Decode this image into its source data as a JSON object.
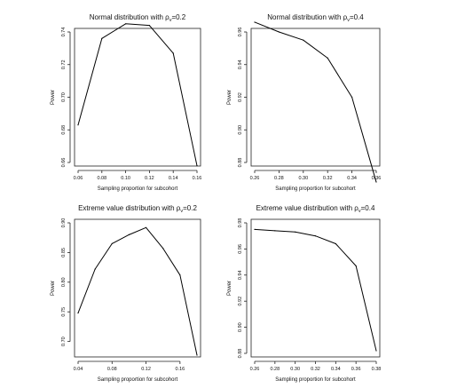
{
  "chart_data": [
    {
      "type": "line",
      "title_main": "Normal distribution with ρ",
      "title_sub": "v",
      "title_tail": "=0.2",
      "xlabel": "Sampling proportion for subcohort",
      "ylabel": "Power",
      "xlim": [
        0.06,
        0.16
      ],
      "ylim": [
        0.66,
        0.74
      ],
      "xticks": [
        0.06,
        0.08,
        0.1,
        0.12,
        0.14,
        0.16
      ],
      "xtick_labels": [
        "0.06",
        "0.08",
        "0.10",
        "0.12",
        "0.14",
        "0.16"
      ],
      "yticks": [
        0.66,
        0.68,
        0.7,
        0.72,
        0.74
      ],
      "ytick_labels": [
        "0.66",
        "0.68",
        "0.70",
        "0.72",
        "0.74"
      ],
      "x": [
        0.06,
        0.08,
        0.1,
        0.12,
        0.14,
        0.16
      ],
      "y": [
        0.683,
        0.736,
        0.745,
        0.744,
        0.727,
        0.658
      ]
    },
    {
      "type": "line",
      "title_main": "Normal distribution with ρ",
      "title_sub": "v",
      "title_tail": "=0.4",
      "xlabel": "Sampling proportion for subcohort",
      "ylabel": "Power",
      "xlim": [
        0.26,
        0.36
      ],
      "ylim": [
        0.88,
        0.96
      ],
      "xticks": [
        0.26,
        0.28,
        0.3,
        0.32,
        0.34,
        0.36
      ],
      "xtick_labels": [
        "0.26",
        "0.28",
        "0.30",
        "0.32",
        "0.34",
        "0.36"
      ],
      "yticks": [
        0.88,
        0.9,
        0.92,
        0.94,
        0.96
      ],
      "ytick_labels": [
        "0.88",
        "0.90",
        "0.92",
        "0.94",
        "0.96"
      ],
      "x": [
        0.26,
        0.28,
        0.3,
        0.32,
        0.34,
        0.36
      ],
      "y": [
        0.966,
        0.96,
        0.955,
        0.944,
        0.92,
        0.868
      ]
    },
    {
      "type": "line",
      "title_main": "Extreme value distribution with ρ",
      "title_sub": "v",
      "title_tail": "=0.2",
      "xlabel": "Sampling proportion for subcohort",
      "ylabel": "Power",
      "xlim": [
        0.04,
        0.18
      ],
      "ylim": [
        0.68,
        0.9
      ],
      "xticks": [
        0.04,
        0.08,
        0.12,
        0.16
      ],
      "xtick_labels": [
        "0.04",
        "0.08",
        "0.12",
        "0.16"
      ],
      "yticks": [
        0.7,
        0.75,
        0.8,
        0.85,
        0.9
      ],
      "ytick_labels": [
        "0.70",
        "0.75",
        "0.80",
        "0.85",
        "0.90"
      ],
      "x": [
        0.04,
        0.06,
        0.08,
        0.1,
        0.12,
        0.14,
        0.16,
        0.18
      ],
      "y": [
        0.748,
        0.822,
        0.865,
        0.88,
        0.892,
        0.857,
        0.812,
        0.677
      ]
    },
    {
      "type": "line",
      "title_main": "Extreme value distribution with ρ",
      "title_sub": "v",
      "title_tail": "=0.4",
      "xlabel": "Sampling proportion for subcohort",
      "ylabel": "Power",
      "xlim": [
        0.26,
        0.38
      ],
      "ylim": [
        0.88,
        0.98
      ],
      "xticks": [
        0.26,
        0.28,
        0.3,
        0.32,
        0.34,
        0.36,
        0.38
      ],
      "xtick_labels": [
        "0.26",
        "0.28",
        "0.30",
        "0.32",
        "0.34",
        "0.36",
        "0.38"
      ],
      "yticks": [
        0.88,
        0.9,
        0.92,
        0.94,
        0.96,
        0.98
      ],
      "ytick_labels": [
        "0.88",
        "0.90",
        "0.92",
        "0.94",
        "0.96",
        "0.98"
      ],
      "x": [
        0.26,
        0.28,
        0.3,
        0.32,
        0.34,
        0.36,
        0.38
      ],
      "y": [
        0.975,
        0.974,
        0.973,
        0.97,
        0.964,
        0.947,
        0.882
      ]
    }
  ]
}
